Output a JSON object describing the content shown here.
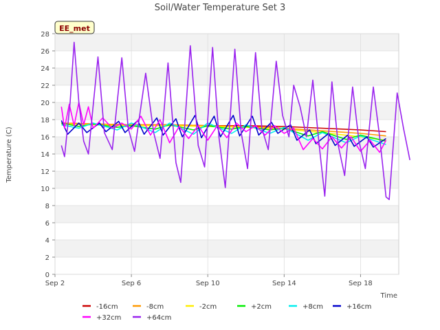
{
  "chart_data": {
    "type": "line",
    "title": "Soil/Water Temperature Set 3",
    "site_label": "EE_met",
    "xlabel": "Time",
    "ylabel": "Temperature (C)",
    "xlim": [
      "2023-09-02 00:00",
      "2023-09-20 00:00"
    ],
    "x_ticks": [
      "Sep 2",
      "Sep 6",
      "Sep 10",
      "Sep 14",
      "Sep 18"
    ],
    "ylim": [
      0,
      28
    ],
    "y_ticks": [
      0,
      2,
      4,
      6,
      8,
      10,
      12,
      14,
      16,
      18,
      20,
      22,
      24,
      26,
      28
    ],
    "grid": true,
    "legend_position": "bottom",
    "series": [
      {
        "name": "-16cm",
        "color": "#cc0000",
        "points": [
          [
            "2023-09-02 08:00",
            17.6
          ],
          [
            "2023-09-04 00:00",
            17.5
          ],
          [
            "2023-09-06 00:00",
            17.4
          ],
          [
            "2023-09-08 00:00",
            17.4
          ],
          [
            "2023-09-10 00:00",
            17.3
          ],
          [
            "2023-09-12 00:00",
            17.3
          ],
          [
            "2023-09-14 00:00",
            17.2
          ],
          [
            "2023-09-16 00:00",
            17.0
          ],
          [
            "2023-09-18 00:00",
            16.8
          ],
          [
            "2023-09-19 08:00",
            16.6
          ]
        ]
      },
      {
        "name": "-8cm",
        "color": "#ff9900",
        "points": [
          [
            "2023-09-02 08:00",
            17.6
          ],
          [
            "2023-09-04 00:00",
            17.5
          ],
          [
            "2023-09-06 00:00",
            17.4
          ],
          [
            "2023-09-08 00:00",
            17.4
          ],
          [
            "2023-09-10 00:00",
            17.3
          ],
          [
            "2023-09-12 00:00",
            17.2
          ],
          [
            "2023-09-14 00:00",
            17.0
          ],
          [
            "2023-09-16 00:00",
            16.7
          ],
          [
            "2023-09-18 00:00",
            16.4
          ],
          [
            "2023-09-19 08:00",
            16.1
          ]
        ]
      },
      {
        "name": "-2cm",
        "color": "#ffee00",
        "points": [
          [
            "2023-09-02 08:00",
            17.5
          ],
          [
            "2023-09-04 00:00",
            17.4
          ],
          [
            "2023-09-06 00:00",
            17.3
          ],
          [
            "2023-09-08 00:00",
            17.3
          ],
          [
            "2023-09-10 00:00",
            17.2
          ],
          [
            "2023-09-12 00:00",
            17.1
          ],
          [
            "2023-09-14 00:00",
            16.9
          ],
          [
            "2023-09-16 00:00",
            16.5
          ],
          [
            "2023-09-18 00:00",
            16.0
          ],
          [
            "2023-09-19 08:00",
            15.6
          ]
        ]
      },
      {
        "name": "+2cm",
        "color": "#00ee00",
        "points": [
          [
            "2023-09-02 08:00",
            17.6
          ],
          [
            "2023-09-03 06:00",
            17.2
          ],
          [
            "2023-09-04 00:00",
            17.5
          ],
          [
            "2023-09-05 06:00",
            17.1
          ],
          [
            "2023-09-06 00:00",
            17.3
          ],
          [
            "2023-09-07 06:00",
            16.9
          ],
          [
            "2023-09-08 00:00",
            17.4
          ],
          [
            "2023-09-09 06:00",
            16.8
          ],
          [
            "2023-09-10 00:00",
            17.3
          ],
          [
            "2023-09-11 06:00",
            16.9
          ],
          [
            "2023-09-12 00:00",
            17.2
          ],
          [
            "2023-09-13 06:00",
            16.8
          ],
          [
            "2023-09-14 00:00",
            17.0
          ],
          [
            "2023-09-15 06:00",
            16.1
          ],
          [
            "2023-09-16 00:00",
            16.6
          ],
          [
            "2023-09-17 06:00",
            15.7
          ],
          [
            "2023-09-18 00:00",
            16.2
          ],
          [
            "2023-09-19 08:00",
            15.5
          ]
        ]
      },
      {
        "name": "+8cm",
        "color": "#00eeee",
        "points": [
          [
            "2023-09-02 08:00",
            17.4
          ],
          [
            "2023-09-03 06:00",
            17.0
          ],
          [
            "2023-09-04 00:00",
            17.6
          ],
          [
            "2023-09-05 06:00",
            16.8
          ],
          [
            "2023-09-06 00:00",
            17.6
          ],
          [
            "2023-09-07 06:00",
            16.5
          ],
          [
            "2023-09-08 00:00",
            17.6
          ],
          [
            "2023-09-09 06:00",
            16.3
          ],
          [
            "2023-09-10 00:00",
            17.6
          ],
          [
            "2023-09-11 06:00",
            16.4
          ],
          [
            "2023-09-12 00:00",
            17.4
          ],
          [
            "2023-09-13 06:00",
            16.4
          ],
          [
            "2023-09-14 00:00",
            17.1
          ],
          [
            "2023-09-15 06:00",
            15.6
          ],
          [
            "2023-09-16 00:00",
            16.5
          ],
          [
            "2023-09-17 06:00",
            15.3
          ],
          [
            "2023-09-18 00:00",
            16.1
          ],
          [
            "2023-09-19 08:00",
            15.1
          ]
        ]
      },
      {
        "name": "+16cm",
        "color": "#0000cc",
        "points": [
          [
            "2023-09-02 08:00",
            17.9
          ],
          [
            "2023-09-02 16:00",
            16.3
          ],
          [
            "2023-09-03 06:00",
            17.6
          ],
          [
            "2023-09-03 16:00",
            16.5
          ],
          [
            "2023-09-04 08:00",
            17.6
          ],
          [
            "2023-09-04 16:00",
            16.6
          ],
          [
            "2023-09-05 08:00",
            17.8
          ],
          [
            "2023-09-05 16:00",
            16.5
          ],
          [
            "2023-09-06 08:00",
            17.9
          ],
          [
            "2023-09-06 16:00",
            16.3
          ],
          [
            "2023-09-07 08:00",
            18.2
          ],
          [
            "2023-09-07 16:00",
            16.2
          ],
          [
            "2023-09-08 08:00",
            18.1
          ],
          [
            "2023-09-08 16:00",
            16.0
          ],
          [
            "2023-09-09 08:00",
            18.5
          ],
          [
            "2023-09-09 16:00",
            15.9
          ],
          [
            "2023-09-10 08:00",
            18.4
          ],
          [
            "2023-09-10 16:00",
            16.0
          ],
          [
            "2023-09-11 08:00",
            18.5
          ],
          [
            "2023-09-11 16:00",
            16.1
          ],
          [
            "2023-09-12 08:00",
            18.4
          ],
          [
            "2023-09-12 16:00",
            16.2
          ],
          [
            "2023-09-13 08:00",
            17.7
          ],
          [
            "2023-09-13 16:00",
            16.4
          ],
          [
            "2023-09-14 08:00",
            17.4
          ],
          [
            "2023-09-14 16:00",
            15.6
          ],
          [
            "2023-09-15 08:00",
            16.8
          ],
          [
            "2023-09-15 16:00",
            15.2
          ],
          [
            "2023-09-16 08:00",
            16.4
          ],
          [
            "2023-09-16 16:00",
            15.0
          ],
          [
            "2023-09-17 08:00",
            16.2
          ],
          [
            "2023-09-17 16:00",
            14.9
          ],
          [
            "2023-09-18 08:00",
            16.0
          ],
          [
            "2023-09-18 16:00",
            14.8
          ],
          [
            "2023-09-19 08:00",
            15.8
          ]
        ]
      },
      {
        "name": "+32cm",
        "color": "#ff00ff",
        "points": [
          [
            "2023-09-02 08:00",
            19.5
          ],
          [
            "2023-09-02 12:00",
            17.0
          ],
          [
            "2023-09-02 18:00",
            19.8
          ],
          [
            "2023-09-03 00:00",
            17.3
          ],
          [
            "2023-09-03 06:00",
            20.0
          ],
          [
            "2023-09-03 12:00",
            17.4
          ],
          [
            "2023-09-03 18:00",
            19.5
          ],
          [
            "2023-09-04 00:00",
            17.0
          ],
          [
            "2023-09-04 12:00",
            18.2
          ],
          [
            "2023-09-05 00:00",
            17.0
          ],
          [
            "2023-09-05 12:00",
            17.6
          ],
          [
            "2023-09-06 00:00",
            16.9
          ],
          [
            "2023-09-06 12:00",
            18.4
          ],
          [
            "2023-09-07 00:00",
            16.2
          ],
          [
            "2023-09-07 12:00",
            18.0
          ],
          [
            "2023-09-08 00:00",
            15.3
          ],
          [
            "2023-09-08 12:00",
            17.2
          ],
          [
            "2023-09-09 00:00",
            15.8
          ],
          [
            "2023-09-09 12:00",
            17.3
          ],
          [
            "2023-09-10 00:00",
            15.6
          ],
          [
            "2023-09-10 12:00",
            17.3
          ],
          [
            "2023-09-11 00:00",
            15.9
          ],
          [
            "2023-09-11 12:00",
            17.6
          ],
          [
            "2023-09-12 00:00",
            16.6
          ],
          [
            "2023-09-12 12:00",
            17.3
          ],
          [
            "2023-09-13 00:00",
            16.2
          ],
          [
            "2023-09-13 12:00",
            17.3
          ],
          [
            "2023-09-14 00:00",
            16.4
          ],
          [
            "2023-09-14 12:00",
            17.0
          ],
          [
            "2023-09-15 00:00",
            14.5
          ],
          [
            "2023-09-15 12:00",
            15.8
          ],
          [
            "2023-09-16 00:00",
            14.6
          ],
          [
            "2023-09-16 12:00",
            16.0
          ],
          [
            "2023-09-17 00:00",
            14.7
          ],
          [
            "2023-09-17 12:00",
            16.0
          ],
          [
            "2023-09-18 00:00",
            14.3
          ],
          [
            "2023-09-18 12:00",
            15.6
          ],
          [
            "2023-09-19 00:00",
            14.2
          ],
          [
            "2023-09-19 08:00",
            15.6
          ]
        ]
      },
      {
        "name": "+64cm",
        "color": "#9922ee",
        "points": [
          [
            "2023-09-02 08:00",
            15.0
          ],
          [
            "2023-09-02 12:00",
            13.7
          ],
          [
            "2023-09-02 19:00",
            20.0
          ],
          [
            "2023-09-03 00:00",
            27.0
          ],
          [
            "2023-09-03 06:00",
            20.0
          ],
          [
            "2023-09-03 12:00",
            15.5
          ],
          [
            "2023-09-03 18:00",
            14.0
          ],
          [
            "2023-09-04 06:00",
            25.3
          ],
          [
            "2023-09-04 14:00",
            16.5
          ],
          [
            "2023-09-05 00:00",
            14.5
          ],
          [
            "2023-09-05 12:00",
            25.2
          ],
          [
            "2023-09-05 20:00",
            17.0
          ],
          [
            "2023-09-06 04:00",
            14.3
          ],
          [
            "2023-09-06 18:00",
            23.4
          ],
          [
            "2023-09-07 04:00",
            16.5
          ],
          [
            "2023-09-07 12:00",
            13.5
          ],
          [
            "2023-09-07 22:00",
            24.6
          ],
          [
            "2023-09-08 08:00",
            13.0
          ],
          [
            "2023-09-08 14:00",
            10.7
          ],
          [
            "2023-09-09 02:00",
            26.6
          ],
          [
            "2023-09-09 12:00",
            15.0
          ],
          [
            "2023-09-09 20:00",
            12.5
          ],
          [
            "2023-09-10 06:00",
            26.4
          ],
          [
            "2023-09-10 14:00",
            16.0
          ],
          [
            "2023-09-10 22:00",
            10.1
          ],
          [
            "2023-09-11 10:00",
            26.2
          ],
          [
            "2023-09-11 18:00",
            16.5
          ],
          [
            "2023-09-12 02:00",
            12.3
          ],
          [
            "2023-09-12 12:00",
            25.8
          ],
          [
            "2023-09-12 20:00",
            17.0
          ],
          [
            "2023-09-13 04:00",
            14.5
          ],
          [
            "2023-09-13 14:00",
            24.8
          ],
          [
            "2023-09-13 22:00",
            18.5
          ],
          [
            "2023-09-14 06:00",
            16.0
          ],
          [
            "2023-09-14 12:00",
            22.0
          ],
          [
            "2023-09-14 20:00",
            19.5
          ],
          [
            "2023-09-15 04:00",
            16.0
          ],
          [
            "2023-09-15 12:00",
            22.6
          ],
          [
            "2023-09-15 20:00",
            15.0
          ],
          [
            "2023-09-16 03:00",
            9.1
          ],
          [
            "2023-09-16 12:00",
            22.4
          ],
          [
            "2023-09-16 20:00",
            15.0
          ],
          [
            "2023-09-17 04:00",
            11.5
          ],
          [
            "2023-09-17 14:00",
            21.8
          ],
          [
            "2023-09-17 22:00",
            15.5
          ],
          [
            "2023-09-18 06:00",
            12.3
          ],
          [
            "2023-09-18 16:00",
            21.8
          ],
          [
            "2023-09-19 00:00",
            16.0
          ],
          [
            "2023-09-19 08:00",
            9.0
          ],
          [
            "2023-09-19 12:00",
            8.7
          ],
          [
            "2023-09-19 22:00",
            21.1
          ],
          [
            "2023-09-20 06:00",
            17.0
          ],
          [
            "2023-09-20 14:00",
            13.3
          ]
        ]
      }
    ]
  }
}
